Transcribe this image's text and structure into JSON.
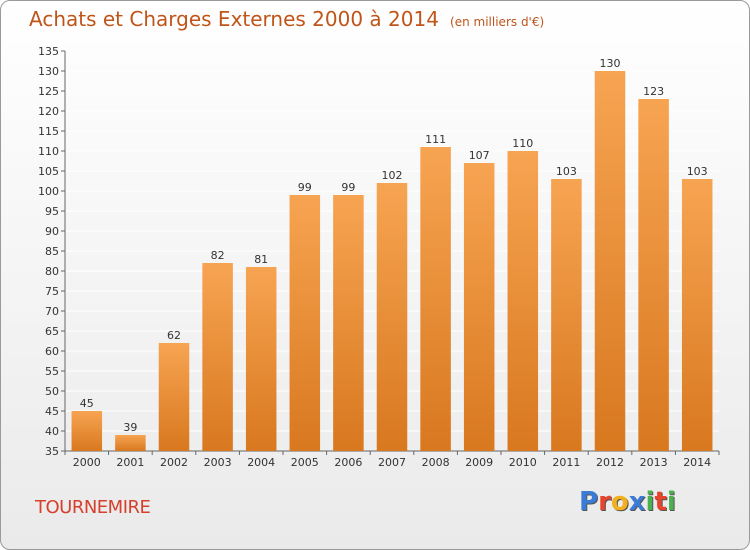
{
  "header": {
    "title": "Achats et Charges Externes 2000 à 2014",
    "unit": "(en milliers d'€)"
  },
  "place": "TOURNEMIRE",
  "logo": {
    "text": "Proxiti",
    "letters": [
      {
        "ch": "P",
        "color": "#3a7bd5"
      },
      {
        "ch": "r",
        "color": "#e8442c"
      },
      {
        "ch": "o",
        "color": "#f2b01e"
      },
      {
        "ch": "x",
        "color": "#3a7bd5"
      },
      {
        "ch": "i",
        "color": "#4caf50"
      },
      {
        "ch": "t",
        "color": "#e8442c"
      },
      {
        "ch": "i",
        "color": "#4caf50"
      }
    ]
  },
  "colors": {
    "bar_top": "#f7a452",
    "bar_bottom": "#d8781f",
    "grid": "#ffffff",
    "text": "#333333"
  },
  "chart_data": {
    "type": "bar",
    "title": "Achats et Charges Externes 2000 à 2014",
    "subtitle": "(en milliers d'€)",
    "categories": [
      "2000",
      "2001",
      "2002",
      "2003",
      "2004",
      "2005",
      "2006",
      "2007",
      "2008",
      "2009",
      "2010",
      "2011",
      "2012",
      "2013",
      "2014"
    ],
    "values": [
      45,
      39,
      62,
      82,
      81,
      99,
      99,
      102,
      111,
      107,
      110,
      103,
      130,
      123,
      103
    ],
    "ylim": [
      35,
      135
    ],
    "yticks": [
      35,
      40,
      45,
      50,
      55,
      60,
      65,
      70,
      75,
      80,
      85,
      90,
      95,
      100,
      105,
      110,
      115,
      120,
      125,
      130,
      135
    ],
    "grid": true,
    "data_labels": true
  }
}
